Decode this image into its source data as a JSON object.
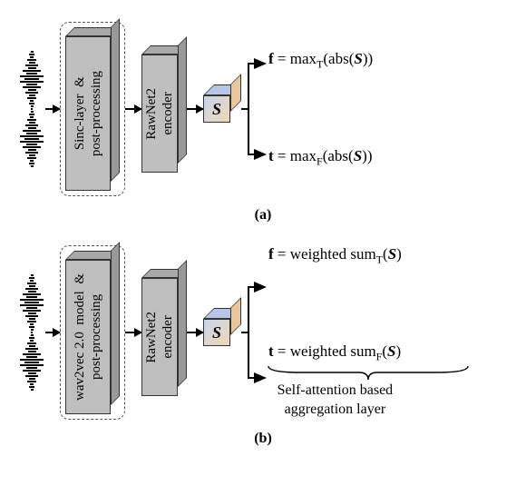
{
  "colors": {
    "block_front": "#bfbfbf",
    "block_top": "#a9a9a9",
    "block_side": "#999999",
    "cube_top": "#b7c5e6",
    "cube_side": "#e8c79a",
    "cube_front_grad_from": "#c9d4ef",
    "cube_front_grad_to": "#f0d8b4",
    "dashed_border": "#555555",
    "arrow": "#000000",
    "bg": "#ffffff"
  },
  "diagram_a": {
    "caption": "(a)",
    "block1_label": "Sinc-layer  &\npost-processing",
    "block2_label": "RawNet2\nencoder",
    "cube_label": "S",
    "out_top_prefix": "f",
    "out_top_expr": " = max",
    "out_top_sub": "T",
    "out_top_tail": "(abs(",
    "out_top_S": "S",
    "out_top_close": "))",
    "out_bot_prefix": "t",
    "out_bot_expr": " = max",
    "out_bot_sub": "F",
    "out_bot_tail": "(abs(",
    "out_bot_S": "S",
    "out_bot_close": "))"
  },
  "diagram_b": {
    "caption": "(b)",
    "block1_label": "wav2vec 2.0  model  &\npost-processing",
    "block2_label": "RawNet2\nencoder",
    "cube_label": "S",
    "out_top_prefix": "f",
    "out_top_expr": " = weighted sum",
    "out_top_sub": "T",
    "out_top_tail": "(",
    "out_top_S": "S",
    "out_top_close": ")",
    "out_bot_prefix": "t",
    "out_bot_expr": " = weighted sum",
    "out_bot_sub": "F",
    "out_bot_tail": "(",
    "out_bot_S": "S",
    "out_bot_close": ")",
    "agg_label_line1": "Self-attention based",
    "agg_label_line2": "aggregation layer"
  },
  "layout": {
    "block1_w": 50,
    "block1_h": 170,
    "block1_depth": 10,
    "block2_w": 40,
    "block2_h": 130,
    "block2_depth": 10,
    "dashed_pad": 6,
    "arrow_short": 16,
    "arrow_med": 18,
    "waveform_widths": [
      3,
      6,
      4,
      10,
      7,
      14,
      9,
      20,
      12,
      26,
      16,
      26,
      12,
      20,
      9,
      14,
      7,
      10,
      4,
      6,
      3,
      2,
      3,
      6,
      4,
      10,
      7,
      14,
      9,
      20,
      12,
      26,
      16,
      26,
      12,
      20,
      9,
      14,
      7,
      10,
      4,
      6,
      3
    ]
  }
}
